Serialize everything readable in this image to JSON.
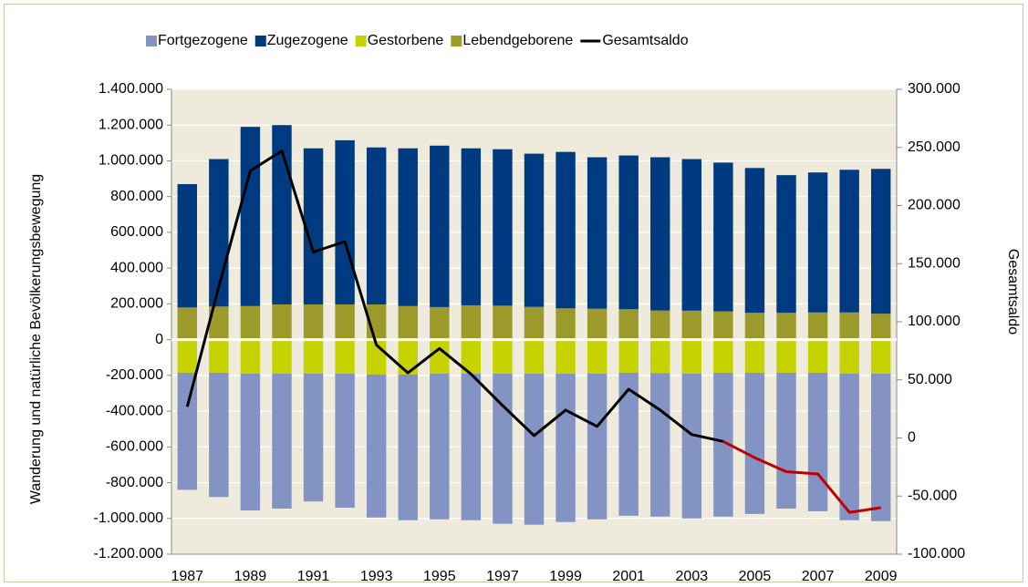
{
  "chart_data": {
    "type": "bar",
    "categories": [
      "1987",
      null,
      "1989",
      null,
      "1991",
      null,
      "1993",
      null,
      "1995",
      null,
      "1997",
      null,
      "1999",
      null,
      "2001",
      null,
      "2003",
      null,
      "2005",
      null,
      "2007",
      null,
      "2009"
    ],
    "series": [
      {
        "name": "Fortgezogene",
        "color": "#8393c3",
        "values": [
          -655000,
          -695000,
          -765000,
          -755000,
          -715000,
          -750000,
          -800000,
          -815000,
          -815000,
          -820000,
          -840000,
          -845000,
          -830000,
          -815000,
          -800000,
          -802000,
          -810000,
          -805000,
          -790000,
          -760000,
          -775000,
          -820000,
          -825000
        ]
      },
      {
        "name": "Zugezogene",
        "color": "#003a80",
        "values": [
          690000,
          825000,
          1002000,
          1003000,
          873000,
          918000,
          878000,
          882000,
          903000,
          878000,
          875000,
          857000,
          875000,
          847000,
          860000,
          857000,
          848000,
          832000,
          810000,
          770000,
          783000,
          798000,
          810000
        ]
      },
      {
        "name": "Gestorbene",
        "color": "#c6d300",
        "values": [
          -185000,
          -185000,
          -190000,
          -190000,
          -190000,
          -190000,
          -195000,
          -195000,
          -190000,
          -190000,
          -190000,
          -190000,
          -190000,
          -190000,
          -185000,
          -188000,
          -190000,
          -185000,
          -185000,
          -185000,
          -185000,
          -190000,
          -190000
        ]
      },
      {
        "name": "Lebendgeborene",
        "color": "#9b9a2a",
        "values": [
          180000,
          185000,
          188000,
          197000,
          197000,
          197000,
          197000,
          188000,
          182000,
          192000,
          190000,
          183000,
          175000,
          173000,
          170000,
          163000,
          162000,
          158000,
          150000,
          150000,
          152000,
          152000,
          145000
        ]
      },
      {
        "name": "Gesamtsaldo",
        "type": "line",
        "axis": "y2",
        "color": "#000000",
        "segment_colors": [
          "#000000",
          "#000000",
          "#000000",
          "#000000",
          "#000000",
          "#000000",
          "#000000",
          "#000000",
          "#000000",
          "#000000",
          "#000000",
          "#000000",
          "#000000",
          "#000000",
          "#000000",
          "#000000",
          "#000000",
          "#000000",
          "#c00000",
          "#c00000",
          "#c00000",
          "#c00000",
          "#c00000"
        ],
        "values": [
          27000,
          130000,
          230000,
          247000,
          160000,
          169000,
          80000,
          56000,
          77000,
          55000,
          28000,
          2000,
          24000,
          10000,
          42000,
          24000,
          3000,
          -3000,
          -17000,
          -29000,
          -31000,
          -64000,
          -60000
        ]
      }
    ],
    "stacked": true,
    "ylabel": "Wanderung  und natürliche Bevölkerungsbewegung",
    "y2label": "Gesamtsaldo",
    "ylim": [
      -1200000,
      1400000
    ],
    "yticks": [
      {
        "value": -1200000,
        "label": "-1.200.000"
      },
      {
        "value": -1000000,
        "label": "-1.000.000"
      },
      {
        "value": -800000,
        "label": "-800.000"
      },
      {
        "value": -600000,
        "label": "-600.000"
      },
      {
        "value": -400000,
        "label": "-400.000"
      },
      {
        "value": -200000,
        "label": "-200.000"
      },
      0,
      {
        "value": 200000,
        "label": "200.000"
      },
      {
        "value": 400000,
        "label": "400.000"
      },
      {
        "value": 600000,
        "label": "600.000"
      },
      {
        "value": 800000,
        "label": "800.000"
      },
      {
        "value": 1000000,
        "label": "1.000.000"
      },
      {
        "value": 1200000,
        "label": "1.200.000"
      },
      {
        "value": 1400000,
        "label": "1.400.000"
      }
    ],
    "y2lim": [
      -100000,
      300000
    ],
    "y2ticks": [
      {
        "value": -100000,
        "label": "-100.000"
      },
      {
        "value": -50000,
        "label": "-50.000"
      },
      0,
      {
        "value": 50000,
        "label": "50.000"
      },
      {
        "value": 100000,
        "label": "100.000"
      },
      {
        "value": 150000,
        "label": "150.000"
      },
      {
        "value": 200000,
        "label": "200.000"
      },
      {
        "value": 250000,
        "label": "250.000"
      },
      {
        "value": 300000,
        "label": "300.000"
      }
    ],
    "grid": true,
    "legend": "top",
    "plot_background": "#eeebdc"
  }
}
